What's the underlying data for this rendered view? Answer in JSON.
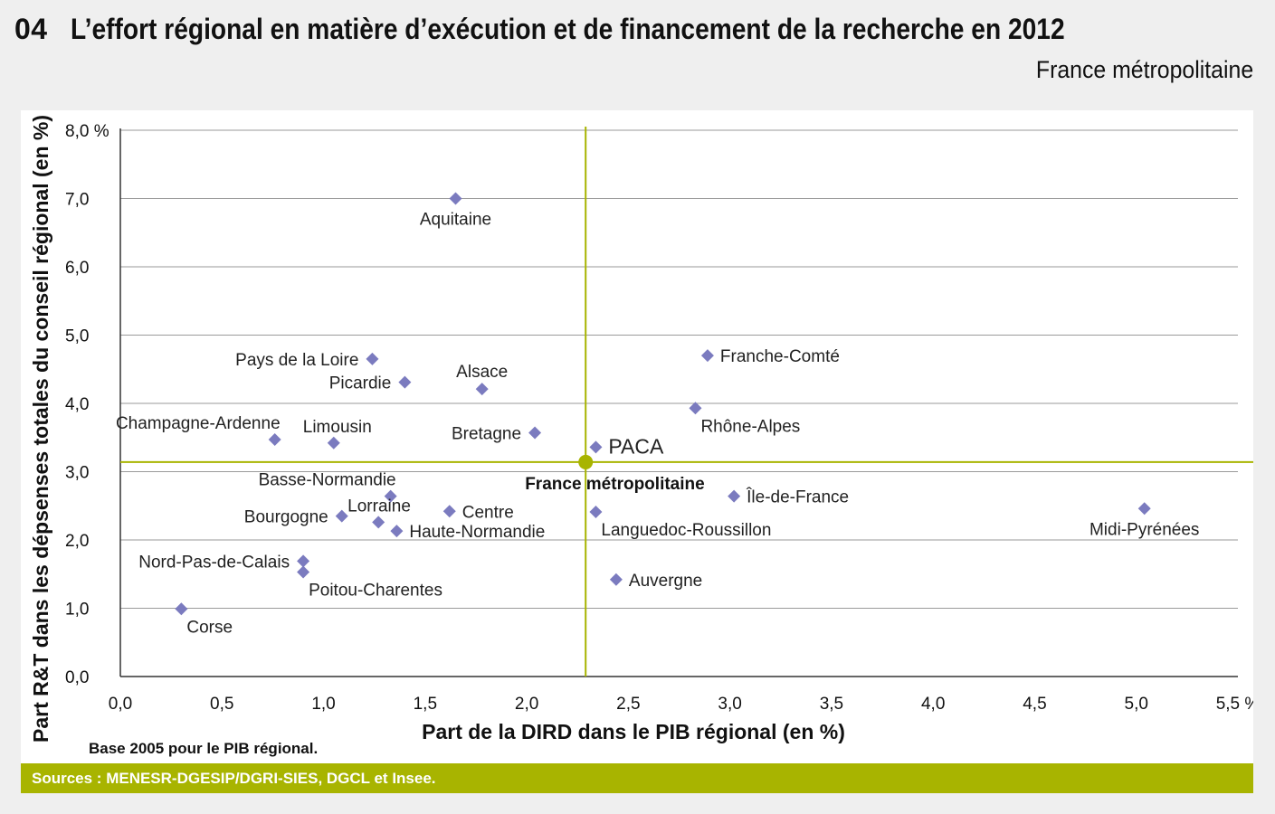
{
  "figure": {
    "number": "04",
    "title": "L’effort régional en matière d’exécution et de financement de la recherche en 2012",
    "subtitle": "France métropolitaine",
    "note": "Base 2005 pour le PIB régional.",
    "sources": "Sources : MENESR-DGESIP/DGRI-SIES, DGCL et Insee."
  },
  "colors": {
    "background": "#efefef",
    "panel": "#ffffff",
    "accent": "#a8b400",
    "marker": "#7b7bbf",
    "gridline": "#9a9a9a",
    "text": "#111111"
  },
  "chart_data": {
    "type": "scatter",
    "xlabel": "Part de la DIRD dans le PIB régional (en %)",
    "ylabel": "Part  R&T dans les dépsenses totales du conseil régional (en %)",
    "xlim": [
      0,
      5.5
    ],
    "ylim": [
      0,
      8
    ],
    "x_ticks": [
      {
        "value": 0,
        "label": "0,0"
      },
      {
        "value": 0.5,
        "label": "0,5"
      },
      {
        "value": 1,
        "label": "1,0"
      },
      {
        "value": 1.5,
        "label": "1,5"
      },
      {
        "value": 2,
        "label": "2,0"
      },
      {
        "value": 2.5,
        "label": "2,5"
      },
      {
        "value": 3,
        "label": "3,0"
      },
      {
        "value": 3.5,
        "label": "3,5"
      },
      {
        "value": 4,
        "label": "4,0"
      },
      {
        "value": 4.5,
        "label": "4,5"
      },
      {
        "value": 5,
        "label": "5,0"
      },
      {
        "value": 5.5,
        "label": "5,5 %"
      }
    ],
    "y_ticks": [
      {
        "value": 0,
        "label": "0,0"
      },
      {
        "value": 1,
        "label": "1,0"
      },
      {
        "value": 2,
        "label": "2,0"
      },
      {
        "value": 3,
        "label": "3,0"
      },
      {
        "value": 4,
        "label": "4,0"
      },
      {
        "value": 5,
        "label": "5,0"
      },
      {
        "value": 6,
        "label": "6,0"
      },
      {
        "value": 7,
        "label": "7,0"
      },
      {
        "value": 8,
        "label": "8,0 %"
      }
    ],
    "grid": "horizontal",
    "reference": {
      "label": "France métropolitaine",
      "x": 2.29,
      "y": 3.14
    },
    "points": [
      {
        "label": "Aquitaine",
        "x": 1.65,
        "y": 7.0,
        "label_pos": "below"
      },
      {
        "label": "Pays de la Loire",
        "x": 1.24,
        "y": 4.65,
        "label_pos": "left"
      },
      {
        "label": "Picardie",
        "x": 1.4,
        "y": 4.31,
        "label_pos": "left"
      },
      {
        "label": "Alsace",
        "x": 1.78,
        "y": 4.21,
        "label_pos": "above"
      },
      {
        "label": "Franche-Comté",
        "x": 2.89,
        "y": 4.7,
        "label_pos": "right"
      },
      {
        "label": "Rhône-Alpes",
        "x": 2.83,
        "y": 3.93,
        "label_pos": "below-right"
      },
      {
        "label": "Champagne-Ardenne",
        "x": 0.76,
        "y": 3.47,
        "label_pos": "above-left"
      },
      {
        "label": "Limousin",
        "x": 1.05,
        "y": 3.42,
        "label_pos": "above-right"
      },
      {
        "label": "Bretagne",
        "x": 2.04,
        "y": 3.57,
        "label_pos": "left"
      },
      {
        "label": "PACA",
        "x": 2.34,
        "y": 3.36,
        "label_pos": "right"
      },
      {
        "label": "Basse-Normandie",
        "x": 1.33,
        "y": 2.64,
        "label_pos": "above-left"
      },
      {
        "label": "Île-de-France",
        "x": 3.02,
        "y": 2.64,
        "label_pos": "right"
      },
      {
        "label": "Bourgogne",
        "x": 1.09,
        "y": 2.35,
        "label_pos": "left"
      },
      {
        "label": "Lorraine",
        "x": 1.27,
        "y": 2.26,
        "label_pos": "above-right"
      },
      {
        "label": "Centre",
        "x": 1.62,
        "y": 2.42,
        "label_pos": "right"
      },
      {
        "label": "Haute-Normandie",
        "x": 1.36,
        "y": 2.13,
        "label_pos": "right"
      },
      {
        "label": "Languedoc-Roussillon",
        "x": 2.34,
        "y": 2.41,
        "label_pos": "below-right"
      },
      {
        "label": "Midi-Pyrénées",
        "x": 5.04,
        "y": 2.46,
        "label_pos": "below"
      },
      {
        "label": "Nord-Pas-de-Calais",
        "x": 0.9,
        "y": 1.69,
        "label_pos": "left"
      },
      {
        "label": "Poitou-Charentes",
        "x": 0.9,
        "y": 1.53,
        "label_pos": "below-right"
      },
      {
        "label": "Auvergne",
        "x": 2.44,
        "y": 1.42,
        "label_pos": "right"
      },
      {
        "label": "Corse",
        "x": 0.3,
        "y": 0.99,
        "label_pos": "below-right"
      }
    ]
  }
}
